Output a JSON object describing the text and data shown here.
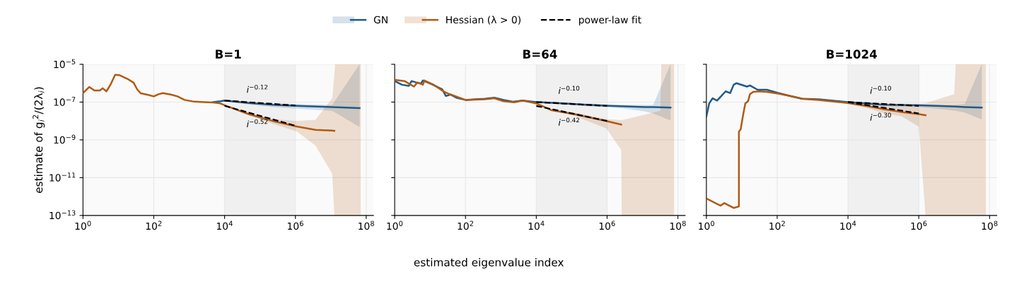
{
  "chart_data": [
    {
      "type": "line",
      "title": "B=1",
      "ylabel": "estimate of g$_{i}$$^{2}$/(2λ$_{i}$)",
      "log": "xy",
      "grid": true,
      "legend": "top",
      "xlim": [
        1,
        160000000
      ],
      "ylim": [
        1e-13,
        1e-05
      ],
      "xticks": [
        {
          "value": 1,
          "label": "10$^{0}$"
        },
        {
          "value": 100,
          "label": "10$^{2}$"
        },
        {
          "value": 10000,
          "label": "10$^{4}$"
        },
        {
          "value": 1000000,
          "label": "10$^{6}$"
        },
        {
          "value": 100000000,
          "label": "10$^{8}$"
        }
      ],
      "yticks": [
        {
          "value": 1e-13,
          "label": "10$^{−13}$"
        },
        {
          "value": 1e-11,
          "label": "10$^{−11}$"
        },
        {
          "value": 1e-09,
          "label": "10$^{−9}$"
        },
        {
          "value": 1e-07,
          "label": "10$^{−7}$"
        },
        {
          "value": 1e-05,
          "label": "10$^{−5}$"
        }
      ],
      "bands": [
        {
          "axis": "x",
          "from": 10000,
          "to": 1000000,
          "color": "#f0f0f0"
        }
      ],
      "series": [
        {
          "name": "GN",
          "color": "#1f5a8a",
          "x": [
            4800,
            7600,
            10000,
            48000,
            230000,
            1100000,
            11000000,
            65000000
          ],
          "values": [
            1e-07,
            1.1e-07,
            1.2e-07,
            9e-08,
            7.2e-08,
            6.3e-08,
            5.5e-08,
            4.8e-08
          ],
          "lower": [
            null,
            null,
            1.1e-07,
            7.5e-08,
            5.5e-08,
            4.5e-08,
            3.5e-08,
            4.8e-09
          ],
          "upper": [
            null,
            null,
            1.3e-07,
            1.05e-07,
            8.5e-08,
            7.9e-08,
            7.1e-08,
            1e-05
          ]
        },
        {
          "name": "Hessian (λ > 0)",
          "color": "#b05a12",
          "x": [
            1,
            1.5,
            2.1,
            3.0,
            3.6,
            4.6,
            6.2,
            8.1,
            11,
            18,
            27,
            34,
            43,
            63,
            100,
            135,
            180,
            300,
            470,
            740,
            1400,
            2600,
            4800,
            7600,
            12000,
            48000,
            230000,
            1100000,
            3700000,
            11000000,
            12600000,
            13200000,
            70000000
          ],
          "values": [
            3e-07,
            6.3e-07,
            4.1e-07,
            4.1e-07,
            5.4e-07,
            3.7e-07,
            9.5e-07,
            2.8e-06,
            2.6e-06,
            1.7e-06,
            1.05e-06,
            4.7e-07,
            2.9e-07,
            2.5e-07,
            2e-07,
            2.6e-07,
            3e-07,
            2.5e-07,
            2e-07,
            1.3e-07,
            1.05e-07,
            1e-07,
            9.5e-08,
            8.5e-08,
            6e-08,
            2.3e-08,
            1e-08,
            5.1e-09,
            3.4e-09,
            3.1e-09,
            3e-09,
            null,
            null
          ],
          "lower": [
            null,
            null,
            null,
            null,
            null,
            null,
            null,
            null,
            null,
            null,
            null,
            null,
            null,
            null,
            null,
            null,
            null,
            null,
            null,
            null,
            null,
            null,
            null,
            null,
            5.5e-08,
            2e-08,
            7e-09,
            2.8e-09,
            5e-10,
            1.6e-11,
            1e-13,
            1e-13,
            1e-13
          ],
          "upper": [
            null,
            null,
            null,
            null,
            null,
            null,
            null,
            null,
            null,
            null,
            null,
            null,
            null,
            null,
            null,
            null,
            null,
            null,
            null,
            null,
            null,
            null,
            null,
            null,
            6.5e-08,
            2.8e-08,
            1.25e-08,
            1e-08,
            1.15e-08,
            1.6e-07,
            3e-06,
            1e-05,
            1e-05
          ]
        },
        {
          "name": "power-law fit",
          "color": "#000000",
          "line_style": "dashed",
          "x": [
            10000,
            1000000
          ],
          "values": [
            1.2e-07,
            6.6e-08
          ]
        },
        {
          "color": "#000000",
          "line_style": "dashed",
          "x": [
            10000,
            1000000
          ],
          "values": [
            6.3e-08,
            5.6e-09
          ]
        }
      ],
      "annotations": [
        "i$^{−0.12}$",
        "i$^{−0.52}$"
      ]
    },
    {
      "type": "line",
      "title": "B=64",
      "xlabel": "estimated eigenvalue index",
      "log": "xy",
      "grid": true,
      "tick_labels": "x",
      "xlim": [
        1,
        160000000
      ],
      "ylim": [
        1e-13,
        1e-05
      ],
      "xticks": [
        {
          "value": 1,
          "label": "10$^{0}$"
        },
        {
          "value": 100,
          "label": "10$^{2}$"
        },
        {
          "value": 10000,
          "label": "10$^{4}$"
        },
        {
          "value": 1000000,
          "label": "10$^{6}$"
        },
        {
          "value": 100000000,
          "label": "10$^{8}$"
        }
      ],
      "yticks": [
        {
          "value": 1e-13,
          "label": null
        },
        {
          "value": 1e-11,
          "label": null
        },
        {
          "value": 1e-09,
          "label": null
        },
        {
          "value": 1e-07,
          "label": null
        },
        {
          "value": 1e-05,
          "label": null
        }
      ],
      "bands": [
        {
          "axis": "x",
          "from": 10000,
          "to": 1000000,
          "color": "#f0f0f0"
        }
      ],
      "series": [
        {
          "color": "#1f5a8a",
          "x": [
            1,
            1.6,
            2.5,
            3.0,
            4.0,
            5.5,
            6.3,
            12,
            22,
            28,
            38,
            55,
            100,
            190,
            350,
            650,
            1200,
            2200,
            4100,
            10000,
            56000,
            260000,
            1200000,
            3200000,
            12000000,
            20000000,
            62000000
          ],
          "values": [
            1.3e-06,
            8.3e-07,
            7.2e-07,
            1.3e-06,
            1.1e-06,
            9.5e-07,
            1.4e-06,
            8.3e-07,
            4.7e-07,
            2.1e-07,
            2.5e-07,
            1.7e-07,
            1.3e-07,
            1.4e-07,
            1.5e-07,
            1.7e-07,
            1.3e-07,
            1.05e-07,
            1.2e-07,
            1e-07,
            8.5e-08,
            7.2e-08,
            6.3e-08,
            5.9e-08,
            5.5e-08,
            5.4e-08,
            5.1e-08
          ],
          "lower": [
            null,
            null,
            null,
            null,
            null,
            null,
            null,
            null,
            null,
            null,
            null,
            null,
            null,
            null,
            null,
            null,
            null,
            null,
            null,
            9e-08,
            7.5e-08,
            6.2e-08,
            5.2e-08,
            4.5e-08,
            3.2e-08,
            2.5e-08,
            1.07e-08
          ],
          "upper": [
            null,
            null,
            null,
            null,
            null,
            null,
            null,
            null,
            null,
            null,
            null,
            null,
            null,
            null,
            null,
            null,
            null,
            null,
            null,
            1.1e-07,
            9.5e-08,
            8.2e-08,
            7.4e-08,
            7.2e-08,
            7e-08,
            7e-08,
            1e-05
          ]
        },
        {
          "color": "#b05a12",
          "x": [
            1,
            1.9,
            3.5,
            4.4,
            6.3,
            6.9,
            12,
            25,
            38,
            100,
            350,
            650,
            1200,
            2400,
            4100,
            10000,
            26000,
            120000,
            950000,
            2500000,
            2600000,
            10000000,
            32000000,
            34000000,
            78000000
          ],
          "values": [
            1.5e-06,
            1.3e-06,
            6.6e-07,
            1.1e-06,
            8.3e-07,
            1.4e-06,
            8.7e-07,
            3.5e-07,
            2.5e-07,
            1.3e-07,
            1.4e-07,
            1.6e-07,
            1.1e-07,
            9.8e-08,
            1.2e-07,
            8.5e-08,
            3.8e-08,
            2.3e-08,
            1e-08,
            6.5e-09,
            null,
            null,
            null,
            null,
            null
          ],
          "lower": [
            null,
            null,
            null,
            null,
            null,
            null,
            null,
            null,
            null,
            null,
            null,
            null,
            null,
            null,
            null,
            null,
            3.4e-08,
            1.9e-08,
            4e-09,
            3e-10,
            1e-13,
            1e-13,
            1e-13,
            1e-13,
            1e-13
          ],
          "upper": [
            null,
            null,
            null,
            null,
            null,
            null,
            null,
            null,
            null,
            null,
            null,
            null,
            null,
            null,
            null,
            null,
            4.2e-08,
            2.8e-08,
            1.25e-08,
            1.1e-08,
            1.1e-08,
            2e-08,
            3.5e-08,
            1e-05,
            1e-05
          ]
        },
        {
          "color": "#000000",
          "line_style": "dashed",
          "x": [
            10000,
            1000000
          ],
          "values": [
            1e-07,
            6.3e-08
          ]
        },
        {
          "color": "#000000",
          "line_style": "dashed",
          "x": [
            10000,
            1000000
          ],
          "values": [
            6.3e-08,
            1e-08
          ]
        }
      ],
      "annotations": [
        "i$^{−0.10}$",
        "i$^{−0.42}$"
      ]
    },
    {
      "type": "line",
      "title": "B=1024",
      "log": "xy",
      "grid": true,
      "tick_labels": "x",
      "xlim": [
        1,
        160000000
      ],
      "ylim": [
        1e-13,
        1e-05
      ],
      "xticks": [
        {
          "value": 1,
          "label": "10$^{0}$"
        },
        {
          "value": 100,
          "label": "10$^{2}$"
        },
        {
          "value": 10000,
          "label": "10$^{4}$"
        },
        {
          "value": 1000000,
          "label": "10$^{6}$"
        },
        {
          "value": 100000000,
          "label": "10$^{8}$"
        }
      ],
      "yticks": [
        {
          "value": 1e-13,
          "label": null
        },
        {
          "value": 1e-11,
          "label": null
        },
        {
          "value": 1e-09,
          "label": null
        },
        {
          "value": 1e-07,
          "label": null
        },
        {
          "value": 1e-05,
          "label": null
        }
      ],
      "bands": [
        {
          "axis": "x",
          "from": 10000,
          "to": 1000000,
          "color": "#f0f0f0"
        }
      ],
      "series": [
        {
          "color": "#1f5a8a",
          "x": [
            1,
            1.2,
            1.5,
            2.0,
            3.5,
            4.7,
            5.9,
            7.1,
            14,
            17,
            28,
            51,
            110,
            230,
            510,
            1500,
            10000,
            110000,
            980000,
            3200000,
            11000000,
            20000000,
            60000000
          ],
          "values": [
            1.7e-08,
            8.5e-08,
            1.6e-07,
            1.2e-07,
            3.7e-07,
            3e-07,
            8.3e-07,
            1e-06,
            6.6e-07,
            7.6e-07,
            4.5e-07,
            4.5e-07,
            3e-07,
            2.1e-07,
            1.5e-07,
            1.4e-07,
            1e-07,
            7.2e-08,
            6.8e-08,
            6.3e-08,
            5.8e-08,
            5.5e-08,
            5.1e-08
          ],
          "lower": [
            null,
            null,
            null,
            null,
            null,
            null,
            null,
            null,
            null,
            null,
            null,
            null,
            null,
            null,
            null,
            null,
            9e-08,
            6.2e-08,
            5.5e-08,
            4.5e-08,
            3.5e-08,
            2.8e-08,
            1.2e-08
          ],
          "upper": [
            null,
            null,
            null,
            null,
            null,
            null,
            null,
            null,
            null,
            null,
            null,
            null,
            null,
            null,
            null,
            null,
            1.1e-07,
            8.2e-08,
            7.8e-08,
            7.1e-08,
            7e-08,
            8e-08,
            1e-05
          ]
        },
        {
          "color": "#b05a12",
          "x": [
            1,
            2.5,
            3.2,
            5.9,
            8.3,
            8.3,
            9.3,
            11,
            12.6,
            15,
            17,
            21,
            32,
            51,
            110,
            230,
            510,
            1500,
            10000,
            32000,
            110000,
            320000,
            1000000,
            1550000,
            1600000,
            10000000,
            11000000,
            78000000
          ],
          "values": [
            7.9e-13,
            3.3e-13,
            4.5e-13,
            2.5e-13,
            3e-13,
            2.7e-09,
            3.6e-09,
            2.3e-08,
            8.5e-08,
            1.1e-07,
            2.6e-07,
            3.5e-07,
            3.7e-07,
            3.5e-07,
            2.8e-07,
            2.1e-07,
            1.5e-07,
            1.3e-07,
            8.9e-08,
            6.3e-08,
            4.1e-08,
            3e-08,
            2.3e-08,
            2e-08,
            null,
            null,
            null,
            null
          ],
          "lower": [
            null,
            null,
            null,
            null,
            null,
            null,
            null,
            null,
            null,
            null,
            null,
            null,
            null,
            null,
            null,
            null,
            null,
            null,
            8e-08,
            5e-08,
            2.5e-08,
            1.8e-08,
            5e-09,
            1e-13,
            1e-13,
            1e-13,
            1e-13,
            1e-13
          ],
          "upper": [
            null,
            null,
            null,
            null,
            null,
            null,
            null,
            null,
            null,
            null,
            null,
            null,
            null,
            null,
            null,
            null,
            null,
            null,
            1e-07,
            8.9e-08,
            6.3e-08,
            7.1e-08,
            7.9e-08,
            9e-08,
            9e-08,
            2.6e-07,
            1e-05,
            1e-05
          ]
        },
        {
          "color": "#000000",
          "line_style": "dashed",
          "x": [
            10000,
            1000000
          ],
          "values": [
            1e-07,
            6.3e-08
          ]
        },
        {
          "color": "#000000",
          "line_style": "dashed",
          "x": [
            10000,
            1000000
          ],
          "values": [
            1e-07,
            2.5e-08
          ]
        }
      ],
      "annotations": [
        "i$^{−0.10}$",
        "i$^{−0.30}$"
      ]
    }
  ]
}
